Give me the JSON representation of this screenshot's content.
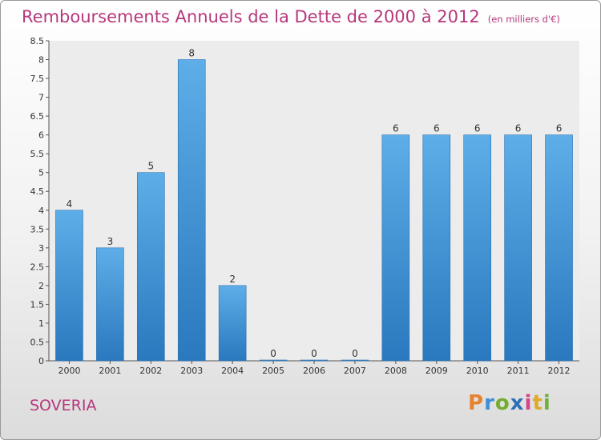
{
  "header": {
    "title": "Remboursements Annuels de la Dette de 2000 à 2012",
    "subtitle": "(en milliers d'€)"
  },
  "footer": {
    "town": "SOVERIA",
    "logo": "Proxiti",
    "logo_letters": [
      "P",
      "r",
      "o",
      "x",
      "i",
      "t",
      "i"
    ]
  },
  "colors": {
    "accent": "#b5387c",
    "bar_top": "#5daee8",
    "bar_bottom": "#2a78be"
  },
  "chart_data": {
    "type": "bar",
    "categories": [
      "2000",
      "2001",
      "2002",
      "2003",
      "2004",
      "2005",
      "2006",
      "2007",
      "2008",
      "2009",
      "2010",
      "2011",
      "2012"
    ],
    "values": [
      4,
      3,
      5,
      8,
      2,
      0,
      0,
      0,
      6,
      6,
      6,
      6,
      6
    ],
    "data_labels": [
      "4",
      "3",
      "5",
      "8",
      "2",
      "0",
      "0",
      "0",
      "6",
      "6",
      "6",
      "6",
      "6"
    ],
    "yticks": [
      "0",
      "0.5",
      "1",
      "1.5",
      "2",
      "2.5",
      "3",
      "3.5",
      "4",
      "4.5",
      "5",
      "5.5",
      "6",
      "6.5",
      "7",
      "7.5",
      "8",
      "8.5"
    ],
    "ylim": [
      0,
      8.5
    ],
    "grid": false,
    "legend": "none"
  }
}
